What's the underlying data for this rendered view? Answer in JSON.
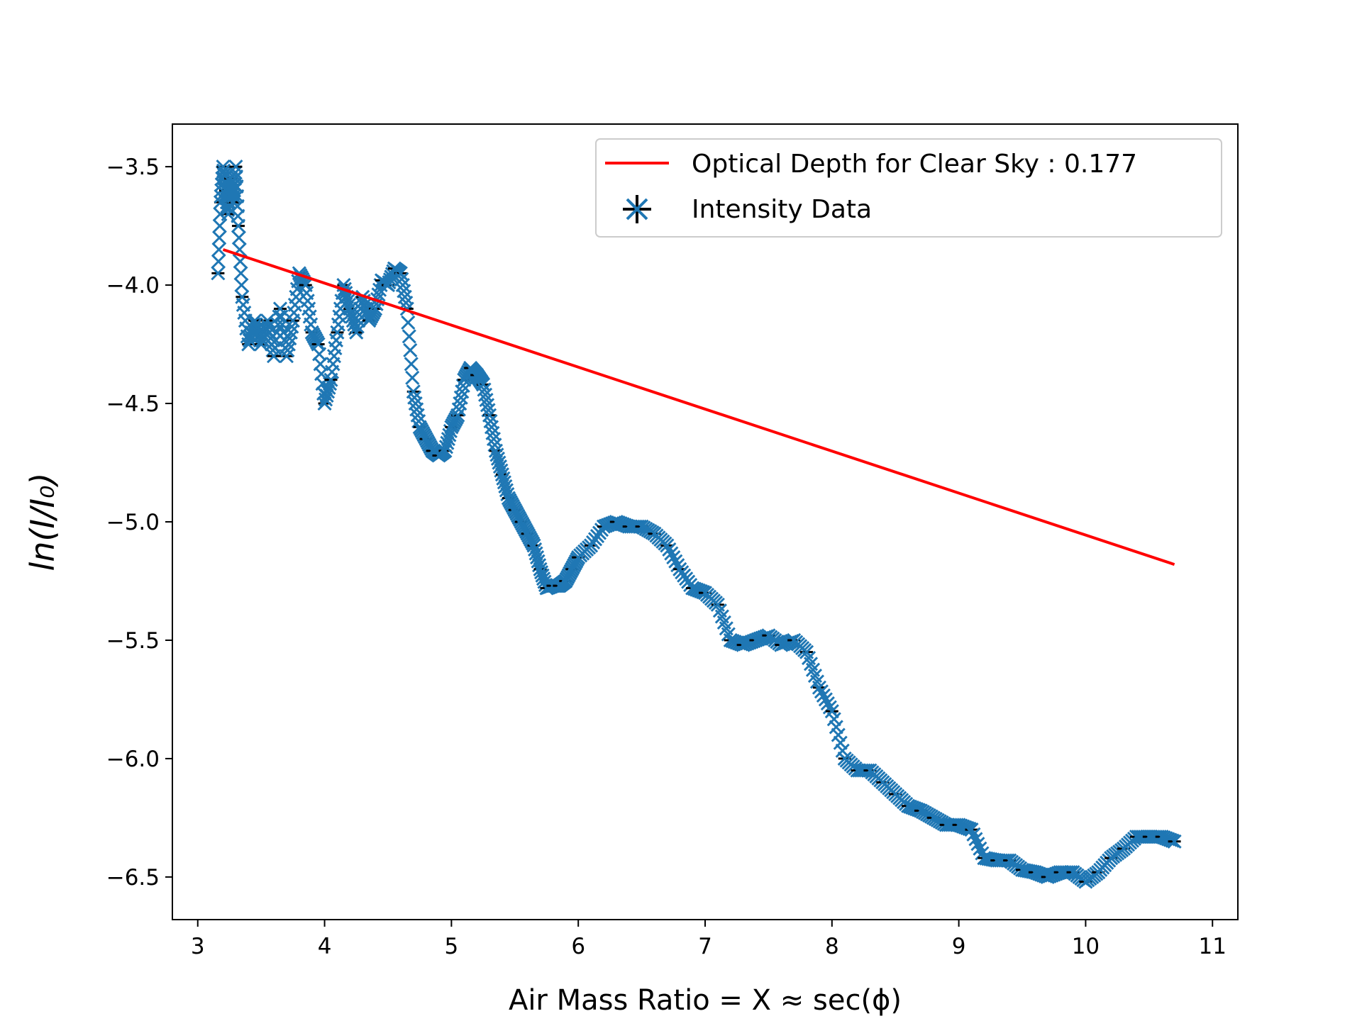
{
  "chart_data": {
    "type": "scatter",
    "title": "",
    "xlabel": "Air Mass Ratio = X ≈ sec(ϕ)",
    "ylabel": "ln(I/I₀)",
    "xlim": [
      2.8,
      11.2
    ],
    "ylim": [
      -6.68,
      -3.32
    ],
    "x_ticks": [
      3,
      4,
      5,
      6,
      7,
      8,
      9,
      10,
      11
    ],
    "y_ticks": [
      -3.5,
      -4.0,
      -4.5,
      -5.0,
      -5.5,
      -6.0,
      -6.5
    ],
    "x_tick_labels": [
      "3",
      "4",
      "5",
      "6",
      "7",
      "8",
      "9",
      "10",
      "11"
    ],
    "y_tick_labels": [
      "−3.5",
      "−4.0",
      "−4.5",
      "−5.0",
      "−5.5",
      "−6.0",
      "−6.5"
    ],
    "grid": false,
    "legend_position": "top-right",
    "legend": [
      {
        "label": "Optical Depth for Clear Sky : 0.177",
        "kind": "line",
        "color": "#ff0000"
      },
      {
        "label": "Intensity Data",
        "kind": "marker",
        "color": "#1f77b4"
      }
    ],
    "series": [
      {
        "name": "Optical Depth for Clear Sky : 0.177",
        "kind": "line",
        "color": "#ff0000",
        "x": [
          3.2,
          10.7
        ],
        "y": [
          -3.85,
          -5.18
        ]
      },
      {
        "name": "Intensity Data",
        "kind": "markers",
        "marker": "x",
        "color": "#1f77b4",
        "errorbar_color": "#000000",
        "x": [
          3.16,
          3.18,
          3.2,
          3.22,
          3.24,
          3.26,
          3.28,
          3.3,
          3.32,
          3.35,
          3.4,
          3.45,
          3.5,
          3.55,
          3.6,
          3.65,
          3.7,
          3.75,
          3.8,
          3.85,
          3.9,
          3.95,
          4.0,
          4.05,
          4.1,
          4.15,
          4.2,
          4.25,
          4.3,
          4.35,
          4.4,
          4.45,
          4.5,
          4.55,
          4.6,
          4.65,
          4.7,
          4.75,
          4.8,
          4.85,
          4.9,
          4.95,
          5.0,
          5.05,
          5.1,
          5.15,
          5.2,
          5.25,
          5.3,
          5.35,
          5.4,
          5.45,
          5.5,
          5.55,
          5.6,
          5.65,
          5.7,
          5.75,
          5.8,
          5.85,
          5.9,
          5.95,
          6.0,
          6.1,
          6.2,
          6.3,
          6.4,
          6.5,
          6.6,
          6.7,
          6.8,
          6.9,
          7.0,
          7.1,
          7.2,
          7.3,
          7.4,
          7.5,
          7.6,
          7.7,
          7.8,
          7.9,
          8.0,
          8.1,
          8.2,
          8.3,
          8.4,
          8.5,
          8.6,
          8.7,
          8.8,
          8.9,
          9.0,
          9.1,
          9.2,
          9.3,
          9.4,
          9.5,
          9.6,
          9.7,
          9.8,
          9.9,
          10.0,
          10.1,
          10.2,
          10.3,
          10.4,
          10.5,
          10.6,
          10.7
        ],
        "y": [
          -3.95,
          -3.65,
          -3.5,
          -3.6,
          -3.7,
          -3.55,
          -3.65,
          -3.5,
          -3.75,
          -4.05,
          -4.25,
          -4.15,
          -4.25,
          -4.15,
          -4.3,
          -4.1,
          -4.3,
          -4.15,
          -3.95,
          -4.0,
          -4.2,
          -4.25,
          -4.5,
          -4.4,
          -4.2,
          -4.0,
          -4.1,
          -4.2,
          -4.05,
          -4.15,
          -4.1,
          -3.98,
          -4.0,
          -3.93,
          -3.95,
          -4.1,
          -4.45,
          -4.6,
          -4.65,
          -4.7,
          -4.72,
          -4.7,
          -4.6,
          -4.55,
          -4.4,
          -4.35,
          -4.38,
          -4.42,
          -4.55,
          -4.7,
          -4.8,
          -4.9,
          -4.95,
          -5.0,
          -5.05,
          -5.1,
          -5.2,
          -5.28,
          -5.27,
          -5.27,
          -5.25,
          -5.2,
          -5.15,
          -5.1,
          -5.02,
          -5.0,
          -5.02,
          -5.02,
          -5.05,
          -5.1,
          -5.2,
          -5.28,
          -5.3,
          -5.35,
          -5.5,
          -5.52,
          -5.5,
          -5.48,
          -5.52,
          -5.5,
          -5.55,
          -5.7,
          -5.8,
          -6.0,
          -6.05,
          -6.05,
          -6.1,
          -6.15,
          -6.2,
          -6.22,
          -6.25,
          -6.28,
          -6.28,
          -6.3,
          -6.42,
          -6.43,
          -6.43,
          -6.47,
          -6.48,
          -6.5,
          -6.48,
          -6.48,
          -6.52,
          -6.48,
          -6.42,
          -6.38,
          -6.33,
          -6.33,
          -6.33,
          -6.35
        ]
      }
    ]
  }
}
